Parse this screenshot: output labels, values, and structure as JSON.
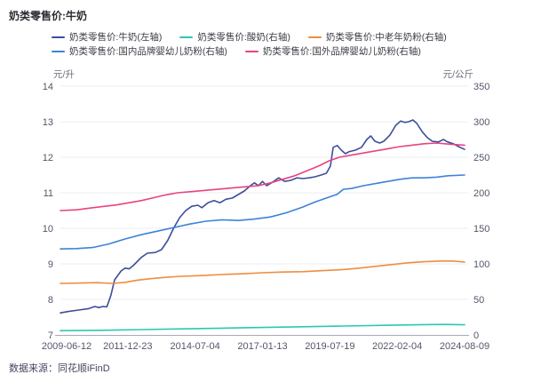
{
  "header": {
    "title": "奶类零售价:牛奶"
  },
  "footer": {
    "source": "数据来源：同花顺iFinD"
  },
  "legend": {
    "rows": [
      [
        0,
        1,
        2
      ],
      [
        3,
        4
      ]
    ]
  },
  "chart_data": {
    "type": "line",
    "title": "奶类零售价:牛奶",
    "grid": true,
    "grid_color": "#ececf4",
    "axis_line_color": "#a9a9b8",
    "tick_text_color": "#55556a",
    "left_axis": {
      "unit": "元/升",
      "min": 7,
      "max": 14,
      "ticks": [
        7,
        8,
        9,
        10,
        11,
        12,
        13,
        14
      ]
    },
    "right_axis": {
      "unit": "元/公斤",
      "min": 0,
      "max": 350,
      "ticks": [
        0,
        50,
        100,
        150,
        200,
        250,
        300,
        350
      ]
    },
    "x_ticks": [
      "2009-06-12",
      "2011-12-23",
      "2014-07-04",
      "2017-01-13",
      "2019-07-19",
      "2022-02-04",
      "2024-08-09"
    ],
    "legend_position": "top",
    "series": [
      {
        "name": "奶类零售价:牛奶(左轴)",
        "axis": "left",
        "color": "#3C4E9C",
        "points": [
          [
            0,
            7.62
          ],
          [
            0.02,
            7.66
          ],
          [
            0.045,
            7.7
          ],
          [
            0.07,
            7.74
          ],
          [
            0.085,
            7.8
          ],
          [
            0.095,
            7.77
          ],
          [
            0.105,
            7.8
          ],
          [
            0.115,
            7.79
          ],
          [
            0.125,
            8.12
          ],
          [
            0.134,
            8.55
          ],
          [
            0.15,
            8.8
          ],
          [
            0.16,
            8.88
          ],
          [
            0.17,
            8.86
          ],
          [
            0.18,
            8.95
          ],
          [
            0.2,
            9.18
          ],
          [
            0.215,
            9.3
          ],
          [
            0.235,
            9.32
          ],
          [
            0.25,
            9.4
          ],
          [
            0.265,
            9.65
          ],
          [
            0.28,
            10.0
          ],
          [
            0.295,
            10.3
          ],
          [
            0.31,
            10.5
          ],
          [
            0.325,
            10.62
          ],
          [
            0.34,
            10.65
          ],
          [
            0.35,
            10.58
          ],
          [
            0.365,
            10.72
          ],
          [
            0.38,
            10.78
          ],
          [
            0.395,
            10.72
          ],
          [
            0.41,
            10.82
          ],
          [
            0.425,
            10.85
          ],
          [
            0.44,
            10.95
          ],
          [
            0.455,
            11.05
          ],
          [
            0.47,
            11.2
          ],
          [
            0.48,
            11.28
          ],
          [
            0.49,
            11.2
          ],
          [
            0.5,
            11.32
          ],
          [
            0.51,
            11.2
          ],
          [
            0.525,
            11.3
          ],
          [
            0.54,
            11.42
          ],
          [
            0.555,
            11.32
          ],
          [
            0.57,
            11.35
          ],
          [
            0.585,
            11.42
          ],
          [
            0.6,
            11.4
          ],
          [
            0.615,
            11.42
          ],
          [
            0.63,
            11.45
          ],
          [
            0.645,
            11.5
          ],
          [
            0.658,
            11.55
          ],
          [
            0.668,
            11.75
          ],
          [
            0.675,
            12.28
          ],
          [
            0.685,
            12.33
          ],
          [
            0.695,
            12.2
          ],
          [
            0.705,
            12.1
          ],
          [
            0.715,
            12.16
          ],
          [
            0.73,
            12.2
          ],
          [
            0.745,
            12.28
          ],
          [
            0.758,
            12.5
          ],
          [
            0.768,
            12.6
          ],
          [
            0.778,
            12.45
          ],
          [
            0.79,
            12.4
          ],
          [
            0.8,
            12.45
          ],
          [
            0.815,
            12.62
          ],
          [
            0.83,
            12.9
          ],
          [
            0.842,
            13.02
          ],
          [
            0.852,
            12.98
          ],
          [
            0.862,
            13.0
          ],
          [
            0.872,
            13.05
          ],
          [
            0.882,
            12.95
          ],
          [
            0.895,
            12.72
          ],
          [
            0.908,
            12.55
          ],
          [
            0.92,
            12.45
          ],
          [
            0.935,
            12.43
          ],
          [
            0.948,
            12.5
          ],
          [
            0.958,
            12.43
          ],
          [
            0.972,
            12.38
          ],
          [
            0.985,
            12.3
          ],
          [
            1,
            12.22
          ]
        ]
      },
      {
        "name": "奶类零售价:酸奶(右轴)",
        "axis": "right",
        "color": "#2BC8B2",
        "points": [
          [
            0,
            6
          ],
          [
            0.1,
            6.5
          ],
          [
            0.2,
            7.5
          ],
          [
            0.3,
            8.5
          ],
          [
            0.4,
            9.5
          ],
          [
            0.5,
            10.5
          ],
          [
            0.6,
            11.5
          ],
          [
            0.7,
            12.5
          ],
          [
            0.8,
            13.5
          ],
          [
            0.9,
            14.5
          ],
          [
            0.95,
            14.8
          ],
          [
            1,
            14.2
          ]
        ]
      },
      {
        "name": "奶类零售价:中老年奶粉(右轴)",
        "axis": "right",
        "color": "#F08C3E",
        "points": [
          [
            0,
            72.5
          ],
          [
            0.05,
            73
          ],
          [
            0.09,
            73.5
          ],
          [
            0.13,
            72.5
          ],
          [
            0.16,
            74
          ],
          [
            0.19,
            77
          ],
          [
            0.22,
            79
          ],
          [
            0.26,
            81
          ],
          [
            0.3,
            82.5
          ],
          [
            0.35,
            83.5
          ],
          [
            0.4,
            85
          ],
          [
            0.45,
            86
          ],
          [
            0.5,
            87.5
          ],
          [
            0.55,
            88.5
          ],
          [
            0.6,
            89
          ],
          [
            0.65,
            90.5
          ],
          [
            0.7,
            92
          ],
          [
            0.74,
            94
          ],
          [
            0.78,
            96.5
          ],
          [
            0.82,
            99
          ],
          [
            0.86,
            101.5
          ],
          [
            0.9,
            103
          ],
          [
            0.94,
            104
          ],
          [
            0.97,
            104
          ],
          [
            1,
            102.5
          ]
        ]
      },
      {
        "name": "奶类零售价:国内品牌婴幼儿奶粉(右轴)",
        "axis": "right",
        "color": "#3E82D8",
        "points": [
          [
            0,
            121
          ],
          [
            0.04,
            121.5
          ],
          [
            0.08,
            123
          ],
          [
            0.12,
            128
          ],
          [
            0.16,
            135
          ],
          [
            0.2,
            141
          ],
          [
            0.24,
            146
          ],
          [
            0.28,
            151
          ],
          [
            0.32,
            156
          ],
          [
            0.36,
            160
          ],
          [
            0.4,
            162
          ],
          [
            0.44,
            161
          ],
          [
            0.48,
            163
          ],
          [
            0.52,
            166
          ],
          [
            0.56,
            172
          ],
          [
            0.6,
            180
          ],
          [
            0.63,
            187
          ],
          [
            0.66,
            193
          ],
          [
            0.685,
            198
          ],
          [
            0.7,
            205
          ],
          [
            0.72,
            206
          ],
          [
            0.75,
            210
          ],
          [
            0.78,
            213
          ],
          [
            0.81,
            216
          ],
          [
            0.84,
            219
          ],
          [
            0.87,
            221
          ],
          [
            0.9,
            221
          ],
          [
            0.93,
            222
          ],
          [
            0.96,
            224
          ],
          [
            1,
            225
          ]
        ]
      },
      {
        "name": "奶类零售价:国外品牌婴幼儿奶粉(右轴)",
        "axis": "right",
        "color": "#E84381",
        "points": [
          [
            0,
            175
          ],
          [
            0.04,
            176
          ],
          [
            0.08,
            179
          ],
          [
            0.11,
            181
          ],
          [
            0.14,
            183
          ],
          [
            0.17,
            186
          ],
          [
            0.2,
            189
          ],
          [
            0.23,
            193
          ],
          [
            0.26,
            197
          ],
          [
            0.29,
            200
          ],
          [
            0.33,
            202
          ],
          [
            0.37,
            204
          ],
          [
            0.41,
            206
          ],
          [
            0.45,
            208
          ],
          [
            0.49,
            210
          ],
          [
            0.52,
            214
          ],
          [
            0.55,
            219
          ],
          [
            0.58,
            224
          ],
          [
            0.61,
            231
          ],
          [
            0.64,
            238
          ],
          [
            0.665,
            245
          ],
          [
            0.69,
            250
          ],
          [
            0.72,
            253
          ],
          [
            0.75,
            256
          ],
          [
            0.78,
            259
          ],
          [
            0.81,
            262
          ],
          [
            0.84,
            265
          ],
          [
            0.87,
            267
          ],
          [
            0.9,
            269
          ],
          [
            0.93,
            270
          ],
          [
            0.96,
            268.5
          ],
          [
            1,
            267
          ]
        ]
      }
    ]
  }
}
